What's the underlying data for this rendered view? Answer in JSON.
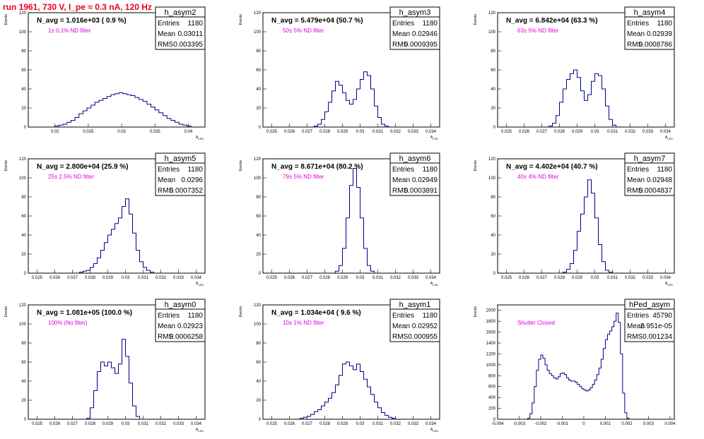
{
  "header": {
    "title": "run 1961,   730 V, I_pe ≈ 0.3 nA, 120 Hz"
  },
  "colors": {
    "histogram": "#00008b",
    "filter_text": "#e000e0",
    "title": "#e8001c"
  },
  "chart_data": [
    {
      "type": "histogram",
      "name": "h_asym2",
      "n_avg": "N_avg = 1.016e+03 ( 0.9 %)",
      "filter": "1± 0.1% ND filter",
      "entries": "1180",
      "mean": "0.03011",
      "rms": "0.003395",
      "xlabel": "A_LED",
      "ylabel": "Events",
      "xlim": [
        0.016,
        0.0425
      ],
      "ylim": [
        0,
        120
      ],
      "xticks": [
        0.02,
        0.025,
        0.03,
        0.035,
        0.04
      ],
      "xtick_labels": [
        "0.02",
        "0.025",
        "0.03",
        "0.035",
        "0.04"
      ],
      "yticks": [
        0,
        20,
        40,
        60,
        80,
        100,
        120
      ],
      "bins": [
        [
          0.02,
          1
        ],
        [
          0.0206,
          2
        ],
        [
          0.0212,
          3
        ],
        [
          0.0218,
          5
        ],
        [
          0.0224,
          7
        ],
        [
          0.023,
          10
        ],
        [
          0.0236,
          14
        ],
        [
          0.0242,
          17
        ],
        [
          0.0248,
          20
        ],
        [
          0.0254,
          23
        ],
        [
          0.026,
          26
        ],
        [
          0.0266,
          28
        ],
        [
          0.0272,
          30
        ],
        [
          0.0278,
          32
        ],
        [
          0.0284,
          34
        ],
        [
          0.029,
          35
        ],
        [
          0.0296,
          36
        ],
        [
          0.0302,
          35
        ],
        [
          0.0308,
          34
        ],
        [
          0.0314,
          33
        ],
        [
          0.032,
          31
        ],
        [
          0.0326,
          29
        ],
        [
          0.0332,
          27
        ],
        [
          0.0338,
          24
        ],
        [
          0.0344,
          21
        ],
        [
          0.035,
          18
        ],
        [
          0.0356,
          15
        ],
        [
          0.0362,
          12
        ],
        [
          0.0368,
          9
        ],
        [
          0.0374,
          7
        ],
        [
          0.038,
          5
        ],
        [
          0.0386,
          3
        ],
        [
          0.0392,
          2
        ],
        [
          0.0398,
          1
        ]
      ]
    },
    {
      "type": "histogram",
      "name": "h_asym3",
      "n_avg": "N_avg = 5.479e+04 (50.7 %)",
      "filter": "50± 5% ND filter",
      "entries": "1180",
      "mean": "0.02946",
      "rms": "0.0009395",
      "xlabel": "A_LED",
      "ylabel": "Events",
      "xlim": [
        0.0245,
        0.0345
      ],
      "ylim": [
        0,
        120
      ],
      "xticks": [
        0.025,
        0.026,
        0.027,
        0.028,
        0.029,
        0.03,
        0.031,
        0.032,
        0.033,
        0.034
      ],
      "xtick_labels": [
        "0.025",
        "0.026",
        "0.027",
        "0.028",
        "0.029",
        "0.03",
        "0.031",
        "0.032",
        "0.033",
        "0.034"
      ],
      "yticks": [
        0,
        20,
        40,
        60,
        80,
        100,
        120
      ],
      "bins": [
        [
          0.0274,
          1
        ],
        [
          0.0276,
          3
        ],
        [
          0.0278,
          8
        ],
        [
          0.028,
          16
        ],
        [
          0.0282,
          26
        ],
        [
          0.0284,
          38
        ],
        [
          0.0286,
          48
        ],
        [
          0.0288,
          44
        ],
        [
          0.029,
          36
        ],
        [
          0.0292,
          28
        ],
        [
          0.0294,
          24
        ],
        [
          0.0296,
          29
        ],
        [
          0.0298,
          40
        ],
        [
          0.03,
          50
        ],
        [
          0.0302,
          58
        ],
        [
          0.0304,
          54
        ],
        [
          0.0306,
          40
        ],
        [
          0.0308,
          22
        ],
        [
          0.031,
          10
        ],
        [
          0.0312,
          3
        ],
        [
          0.0314,
          1
        ]
      ]
    },
    {
      "type": "histogram",
      "name": "h_asym4",
      "n_avg": "N_avg = 6.842e+04 (63.3 %)",
      "filter": "63± 5% ND filter",
      "entries": "1180",
      "mean": "0.02939",
      "rms": "0.0008786",
      "xlabel": "A_LED",
      "ylabel": "Events",
      "xlim": [
        0.0245,
        0.0345
      ],
      "ylim": [
        0,
        120
      ],
      "xticks": [
        0.025,
        0.026,
        0.027,
        0.028,
        0.029,
        0.03,
        0.031,
        0.032,
        0.033,
        0.034
      ],
      "xtick_labels": [
        "0.025",
        "0.026",
        "0.027",
        "0.028",
        "0.029",
        "0.03",
        "0.031",
        "0.032",
        "0.033",
        "0.034"
      ],
      "yticks": [
        0,
        20,
        40,
        60,
        80,
        100,
        120
      ],
      "bins": [
        [
          0.0274,
          1
        ],
        [
          0.0276,
          4
        ],
        [
          0.0278,
          12
        ],
        [
          0.028,
          26
        ],
        [
          0.0282,
          40
        ],
        [
          0.0284,
          50
        ],
        [
          0.0286,
          56
        ],
        [
          0.0288,
          60
        ],
        [
          0.029,
          52
        ],
        [
          0.0292,
          38
        ],
        [
          0.0294,
          28
        ],
        [
          0.0296,
          34
        ],
        [
          0.0298,
          48
        ],
        [
          0.03,
          56
        ],
        [
          0.0302,
          54
        ],
        [
          0.0304,
          40
        ],
        [
          0.0306,
          22
        ],
        [
          0.0308,
          8
        ],
        [
          0.031,
          2
        ]
      ]
    },
    {
      "type": "histogram",
      "name": "h_asym5",
      "n_avg": "N_avg = 2.800e+04 (25.9 %)",
      "filter": "25± 2.5% ND filter",
      "entries": "1180",
      "mean": "0.0296",
      "rms": "0.0007352",
      "xlabel": "A_LED",
      "ylabel": "Events",
      "xlim": [
        0.0245,
        0.0345
      ],
      "ylim": [
        0,
        120
      ],
      "xticks": [
        0.025,
        0.026,
        0.027,
        0.028,
        0.029,
        0.03,
        0.031,
        0.032,
        0.033,
        0.034
      ],
      "xtick_labels": [
        "0.025",
        "0.026",
        "0.027",
        "0.028",
        "0.029",
        "0.03",
        "0.031",
        "0.032",
        "0.033",
        "0.034"
      ],
      "yticks": [
        0,
        20,
        40,
        60,
        80,
        100,
        120
      ],
      "bins": [
        [
          0.0274,
          1
        ],
        [
          0.0276,
          2
        ],
        [
          0.0278,
          3
        ],
        [
          0.028,
          6
        ],
        [
          0.0282,
          10
        ],
        [
          0.0284,
          16
        ],
        [
          0.0286,
          24
        ],
        [
          0.0288,
          32
        ],
        [
          0.029,
          40
        ],
        [
          0.0292,
          46
        ],
        [
          0.0294,
          52
        ],
        [
          0.0296,
          58
        ],
        [
          0.0298,
          70
        ],
        [
          0.03,
          78
        ],
        [
          0.0302,
          62
        ],
        [
          0.0304,
          42
        ],
        [
          0.0306,
          24
        ],
        [
          0.0308,
          12
        ],
        [
          0.031,
          6
        ],
        [
          0.0312,
          3
        ],
        [
          0.0314,
          1
        ]
      ]
    },
    {
      "type": "histogram",
      "name": "h_asym6",
      "n_avg": "N_avg = 8.671e+04 (80.2 %)",
      "filter": "79± 5% ND filter",
      "entries": "1180",
      "mean": "0.02949",
      "rms": "0.0003891",
      "xlabel": "A_LED",
      "ylabel": "Events",
      "xlim": [
        0.0245,
        0.0345
      ],
      "ylim": [
        0,
        120
      ],
      "xticks": [
        0.025,
        0.026,
        0.027,
        0.028,
        0.029,
        0.03,
        0.031,
        0.032,
        0.033,
        0.034
      ],
      "xtick_labels": [
        "0.025",
        "0.026",
        "0.027",
        "0.028",
        "0.029",
        "0.03",
        "0.031",
        "0.032",
        "0.033",
        "0.034"
      ],
      "yticks": [
        0,
        20,
        40,
        60,
        80,
        100,
        120
      ],
      "bins": [
        [
          0.0286,
          2
        ],
        [
          0.0288,
          8
        ],
        [
          0.029,
          26
        ],
        [
          0.0292,
          58
        ],
        [
          0.0294,
          92
        ],
        [
          0.0296,
          110
        ],
        [
          0.0298,
          90
        ],
        [
          0.03,
          58
        ],
        [
          0.0302,
          26
        ],
        [
          0.0304,
          8
        ],
        [
          0.0306,
          2
        ]
      ]
    },
    {
      "type": "histogram",
      "name": "h_asym7",
      "n_avg": "N_avg = 4.402e+04 (40.7 %)",
      "filter": "40± 4% ND filter",
      "entries": "1180",
      "mean": "0.02948",
      "rms": "0.0004837",
      "xlabel": "A_LED",
      "ylabel": "Events",
      "xlim": [
        0.0245,
        0.0345
      ],
      "ylim": [
        0,
        120
      ],
      "xticks": [
        0.025,
        0.026,
        0.027,
        0.028,
        0.029,
        0.03,
        0.031,
        0.032,
        0.033,
        0.034
      ],
      "xtick_labels": [
        "0.025",
        "0.026",
        "0.027",
        "0.028",
        "0.029",
        "0.03",
        "0.031",
        "0.032",
        "0.033",
        "0.034"
      ],
      "yticks": [
        0,
        20,
        40,
        60,
        80,
        100,
        120
      ],
      "bins": [
        [
          0.0282,
          1
        ],
        [
          0.0284,
          4
        ],
        [
          0.0286,
          10
        ],
        [
          0.0288,
          24
        ],
        [
          0.029,
          44
        ],
        [
          0.0292,
          62
        ],
        [
          0.0294,
          80
        ],
        [
          0.0296,
          98
        ],
        [
          0.0298,
          84
        ],
        [
          0.03,
          58
        ],
        [
          0.0302,
          30
        ],
        [
          0.0304,
          12
        ],
        [
          0.0306,
          3
        ],
        [
          0.0308,
          1
        ]
      ]
    },
    {
      "type": "histogram",
      "name": "h_asym0",
      "n_avg": "N_avg = 1.081e+05 (100.0 %)",
      "filter": "100% (No filter)",
      "entries": "1180",
      "mean": "0.02923",
      "rms": "0.0006258",
      "xlabel": "A_LED",
      "ylabel": "Events",
      "xlim": [
        0.0245,
        0.0345
      ],
      "ylim": [
        0,
        120
      ],
      "xticks": [
        0.025,
        0.026,
        0.027,
        0.028,
        0.029,
        0.03,
        0.031,
        0.032,
        0.033,
        0.034
      ],
      "xtick_labels": [
        "0.025",
        "0.026",
        "0.027",
        "0.028",
        "0.029",
        "0.03",
        "0.031",
        "0.032",
        "0.033",
        "0.034"
      ],
      "yticks": [
        0,
        20,
        40,
        60,
        80,
        100,
        120
      ],
      "bins": [
        [
          0.0278,
          1
        ],
        [
          0.028,
          12
        ],
        [
          0.0282,
          30
        ],
        [
          0.0284,
          50
        ],
        [
          0.0286,
          60
        ],
        [
          0.0288,
          56
        ],
        [
          0.029,
          60
        ],
        [
          0.0292,
          54
        ],
        [
          0.0294,
          48
        ],
        [
          0.0296,
          58
        ],
        [
          0.0298,
          84
        ],
        [
          0.03,
          66
        ],
        [
          0.0302,
          38
        ],
        [
          0.0304,
          14
        ],
        [
          0.0306,
          3
        ]
      ]
    },
    {
      "type": "histogram",
      "name": "h_asym1",
      "n_avg": "N_avg = 1.034e+04 ( 9.6 %)",
      "filter": "10± 1% ND filter",
      "entries": "1180",
      "mean": "0.02952",
      "rms": "0.000955",
      "xlabel": "A_LED",
      "ylabel": "Events",
      "xlim": [
        0.0245,
        0.0345
      ],
      "ylim": [
        0,
        120
      ],
      "xticks": [
        0.025,
        0.026,
        0.027,
        0.028,
        0.029,
        0.03,
        0.031,
        0.032,
        0.033,
        0.034
      ],
      "xtick_labels": [
        "0.025",
        "0.026",
        "0.027",
        "0.028",
        "0.029",
        "0.03",
        "0.031",
        "0.032",
        "0.033",
        "0.034"
      ],
      "yticks": [
        0,
        20,
        40,
        60,
        80,
        100,
        120
      ],
      "bins": [
        [
          0.0266,
          1
        ],
        [
          0.0268,
          2
        ],
        [
          0.027,
          3
        ],
        [
          0.0272,
          5
        ],
        [
          0.0274,
          8
        ],
        [
          0.0276,
          10
        ],
        [
          0.0278,
          14
        ],
        [
          0.028,
          18
        ],
        [
          0.0282,
          22
        ],
        [
          0.0284,
          28
        ],
        [
          0.0286,
          36
        ],
        [
          0.0288,
          46
        ],
        [
          0.029,
          58
        ],
        [
          0.0292,
          60
        ],
        [
          0.0294,
          56
        ],
        [
          0.0296,
          52
        ],
        [
          0.0298,
          58
        ],
        [
          0.03,
          50
        ],
        [
          0.0302,
          42
        ],
        [
          0.0304,
          34
        ],
        [
          0.0306,
          26
        ],
        [
          0.0308,
          18
        ],
        [
          0.031,
          12
        ],
        [
          0.0312,
          7
        ],
        [
          0.0314,
          4
        ],
        [
          0.0316,
          2
        ],
        [
          0.0318,
          1
        ]
      ]
    },
    {
      "type": "histogram",
      "name": "hPed_asym",
      "n_avg": "",
      "filter": "Shutter Closed",
      "entries": "45790",
      "mean": "2.951e-05",
      "rms": "0.001234",
      "xlabel": "",
      "ylabel": "Events",
      "xlim": [
        -0.004,
        0.0042
      ],
      "ylim": [
        0,
        2100
      ],
      "xticks": [
        -0.004,
        -0.003,
        -0.002,
        -0.001,
        0,
        0.001,
        0.002,
        0.003,
        0.004
      ],
      "xtick_labels": [
        "-0.004",
        "-0.003",
        "-0.002",
        "-0.001",
        "0",
        "0.001",
        "0.002",
        "0.003",
        "0.004"
      ],
      "yticks": [
        0,
        200,
        400,
        600,
        800,
        1000,
        1200,
        1400,
        1600,
        1800,
        2000
      ],
      "bins": [
        [
          -0.0026,
          20
        ],
        [
          -0.0025,
          100
        ],
        [
          -0.0024,
          300
        ],
        [
          -0.0023,
          600
        ],
        [
          -0.0022,
          900
        ],
        [
          -0.0021,
          1100
        ],
        [
          -0.002,
          1180
        ],
        [
          -0.0019,
          1120
        ],
        [
          -0.0018,
          1000
        ],
        [
          -0.0017,
          900
        ],
        [
          -0.0016,
          840
        ],
        [
          -0.0015,
          800
        ],
        [
          -0.0014,
          760
        ],
        [
          -0.0013,
          740
        ],
        [
          -0.0012,
          780
        ],
        [
          -0.0011,
          840
        ],
        [
          -0.001,
          850
        ],
        [
          -0.0009,
          820
        ],
        [
          -0.0008,
          760
        ],
        [
          -0.0007,
          720
        ],
        [
          -0.0006,
          700
        ],
        [
          -0.0005,
          700
        ],
        [
          -0.0004,
          680
        ],
        [
          -0.0003,
          640
        ],
        [
          -0.0002,
          600
        ],
        [
          -0.0001,
          560
        ],
        [
          0.0,
          540
        ],
        [
          0.0001,
          520
        ],
        [
          0.0002,
          540
        ],
        [
          0.0003,
          580
        ],
        [
          0.0004,
          640
        ],
        [
          0.0005,
          720
        ],
        [
          0.0006,
          820
        ],
        [
          0.0007,
          940
        ],
        [
          0.0008,
          1100
        ],
        [
          0.0009,
          1300
        ],
        [
          0.001,
          1460
        ],
        [
          0.0011,
          1560
        ],
        [
          0.0012,
          1620
        ],
        [
          0.0013,
          1700
        ],
        [
          0.0014,
          1800
        ],
        [
          0.0015,
          1950
        ],
        [
          0.0016,
          1780
        ],
        [
          0.0017,
          1200
        ],
        [
          0.0018,
          480
        ],
        [
          0.0019,
          120
        ],
        [
          0.002,
          20
        ]
      ]
    }
  ]
}
